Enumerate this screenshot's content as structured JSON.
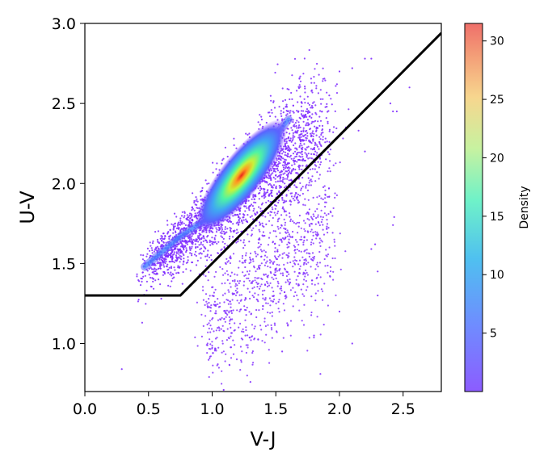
{
  "chart_data": {
    "type": "scatter",
    "title": "",
    "xlabel": "V-J",
    "ylabel": "U-V",
    "xlim": [
      0.0,
      2.8
    ],
    "ylim": [
      0.7,
      3.0
    ],
    "xticks": [
      "0.0",
      "0.5",
      "1.0",
      "1.5",
      "2.0",
      "2.5"
    ],
    "yticks": [
      "1.0",
      "1.5",
      "2.0",
      "2.5",
      "3.0"
    ],
    "grid": false,
    "colormap": "rainbow",
    "colorbar": {
      "label": "Density",
      "range": [
        0,
        31.5
      ],
      "ticks": [
        "5",
        "10",
        "15",
        "20",
        "25",
        "30"
      ]
    },
    "selection_boundary": {
      "color": "#000000",
      "points": [
        [
          0.0,
          1.3
        ],
        [
          0.75,
          1.3
        ],
        [
          2.8,
          2.94
        ]
      ]
    },
    "density_core": {
      "description_points": [
        [
          0.47,
          1.48
        ],
        [
          0.75,
          1.67
        ],
        [
          1.0,
          1.8
        ],
        [
          1.2,
          2.0
        ],
        [
          1.4,
          2.2
        ],
        [
          1.6,
          2.4
        ]
      ],
      "peak": [
        1.23,
        2.05
      ],
      "peak_density": 31
    },
    "outlier_points": [
      [
        0.29,
        0.84
      ],
      [
        0.45,
        1.13
      ],
      [
        0.6,
        1.28
      ],
      [
        1.09,
        0.71
      ],
      [
        1.3,
        0.76
      ],
      [
        1.85,
        0.81
      ],
      [
        1.55,
        0.95
      ],
      [
        1.8,
        1.05
      ],
      [
        2.2,
        2.78
      ],
      [
        2.25,
        2.78
      ],
      [
        2.1,
        2.72
      ],
      [
        2.0,
        2.7
      ],
      [
        2.55,
        2.6
      ],
      [
        2.42,
        2.45
      ],
      [
        2.45,
        2.45
      ],
      [
        2.4,
        2.5
      ],
      [
        2.43,
        1.79
      ],
      [
        2.42,
        1.74
      ],
      [
        2.3,
        1.45
      ],
      [
        2.3,
        1.3
      ],
      [
        2.25,
        1.59
      ],
      [
        2.28,
        1.62
      ],
      [
        2.15,
        2.33
      ],
      [
        2.2,
        2.2
      ],
      [
        2.05,
        2.35
      ],
      [
        1.9,
        2.48
      ],
      [
        1.92,
        2.55
      ],
      [
        1.98,
        2.62
      ],
      [
        2.1,
        1.0
      ],
      [
        2.0,
        1.2
      ]
    ]
  }
}
